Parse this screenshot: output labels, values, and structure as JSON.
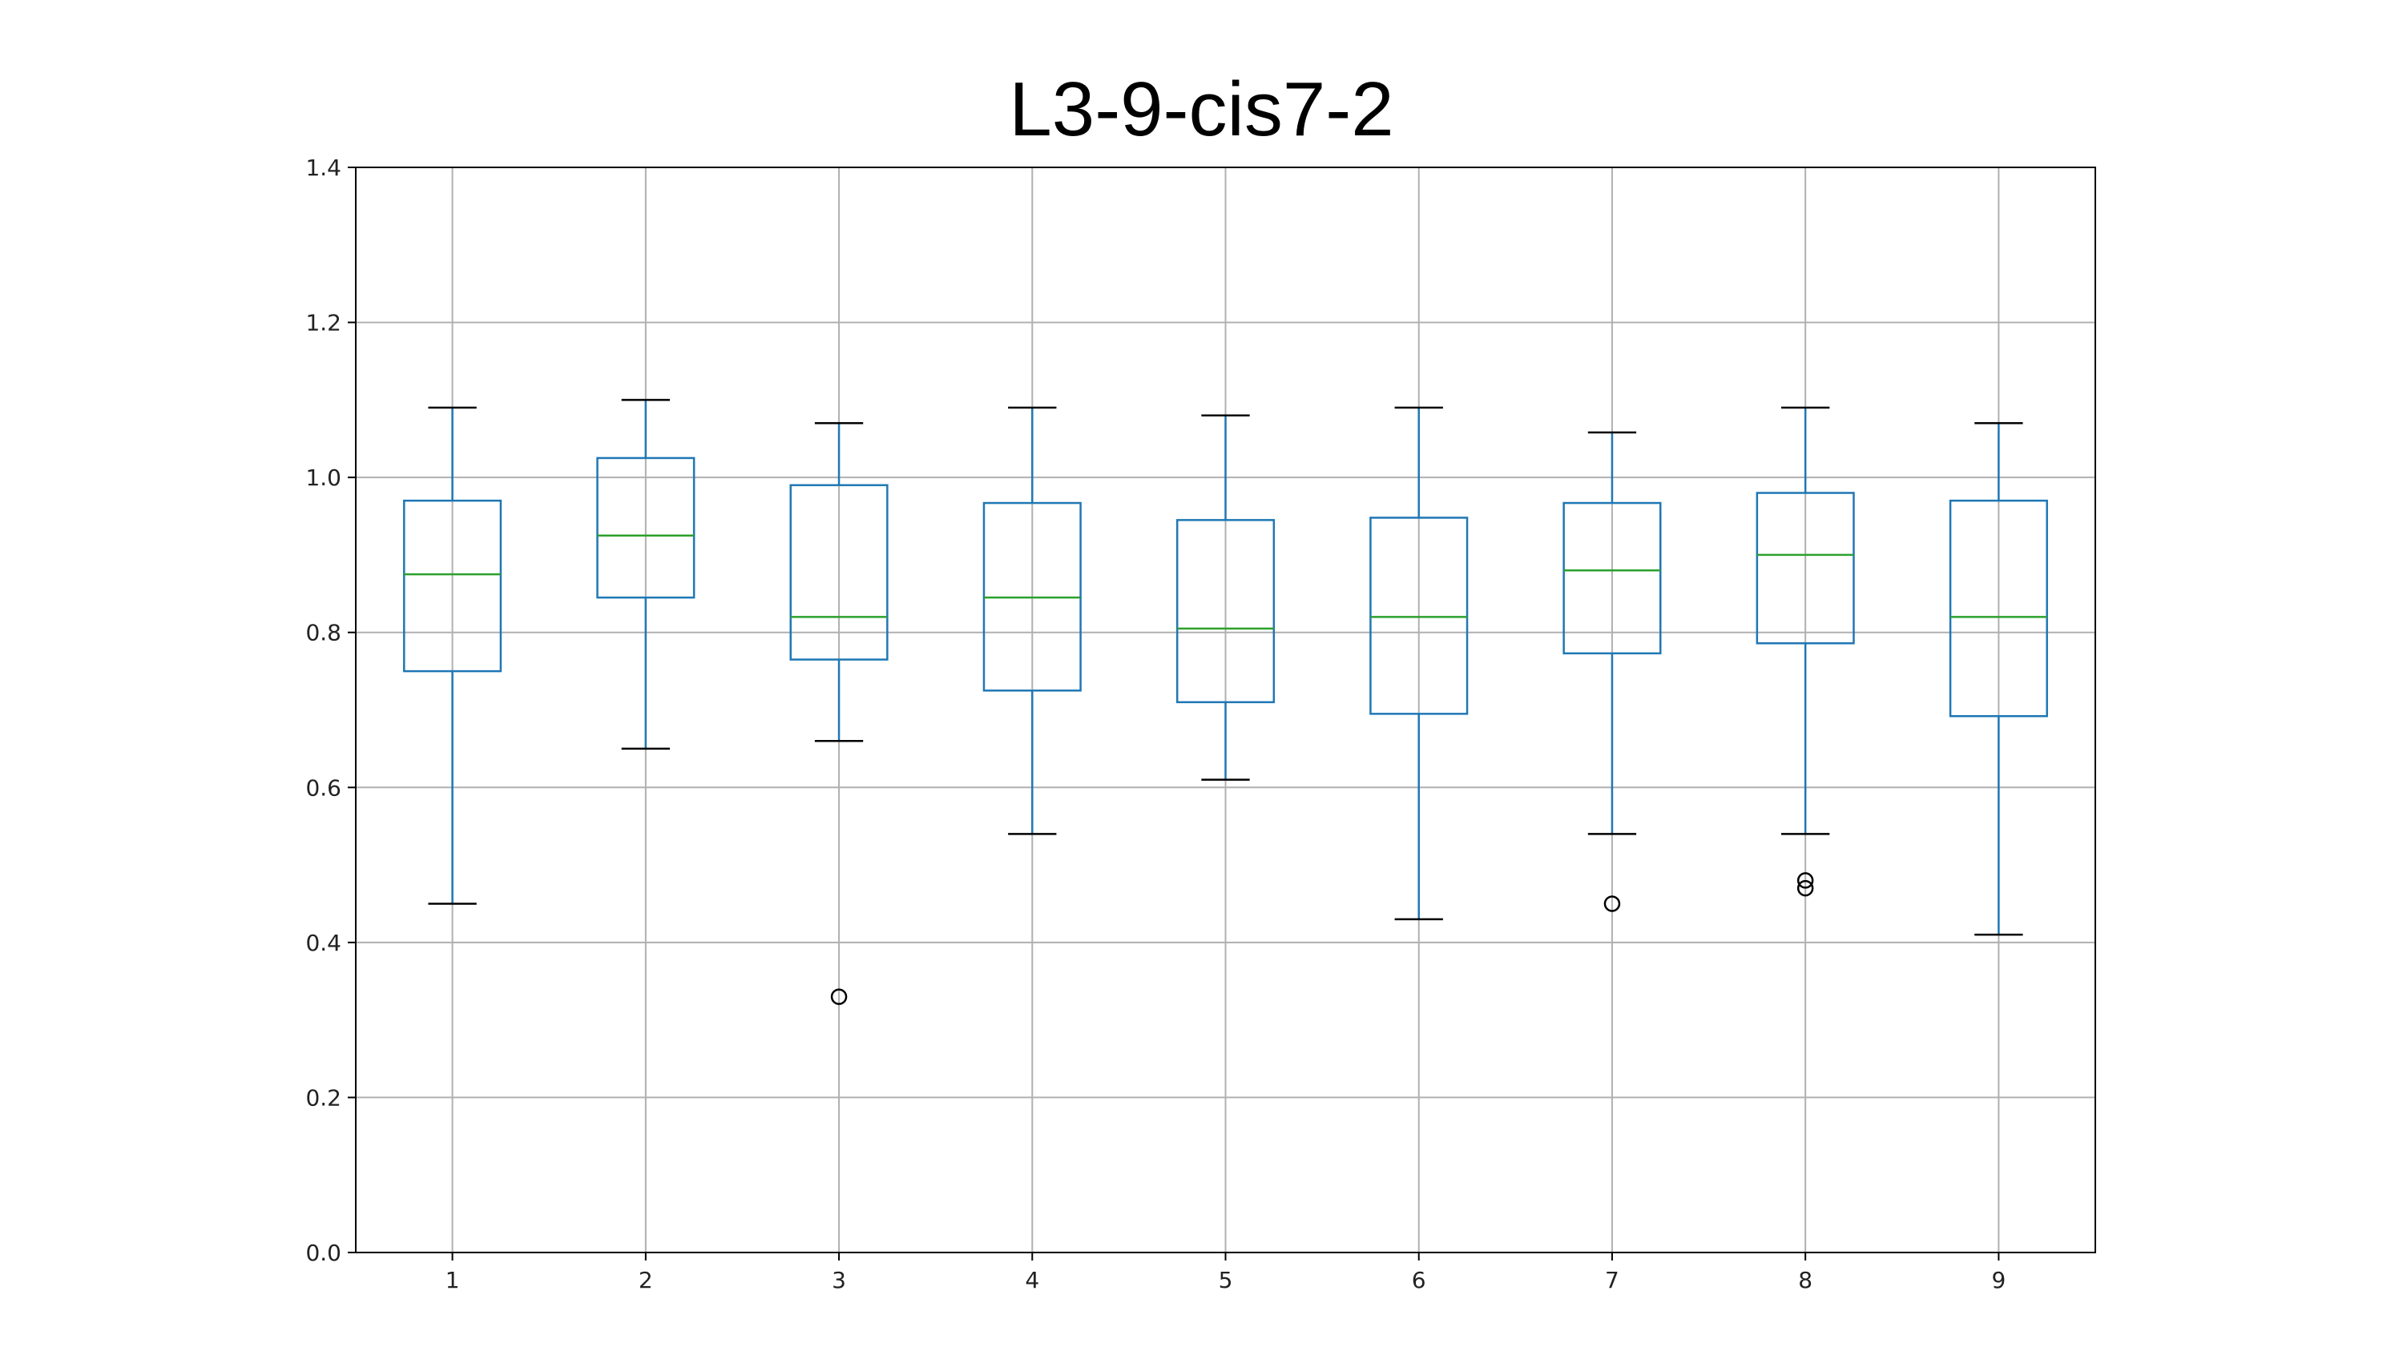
{
  "chart_data": {
    "type": "box",
    "title": "L3-9-cis7-2",
    "xlabel": "",
    "ylabel": "",
    "categories": [
      "1",
      "2",
      "3",
      "4",
      "5",
      "6",
      "7",
      "8",
      "9"
    ],
    "ylim": [
      0.0,
      1.4
    ],
    "yticks": [
      0.0,
      0.2,
      0.4,
      0.6,
      0.8,
      1.0,
      1.2,
      1.4
    ],
    "ytick_labels": [
      "0.0",
      "0.2",
      "0.4",
      "0.6",
      "0.8",
      "1.0",
      "1.2",
      "1.4"
    ],
    "grid": true,
    "boxes": [
      {
        "label": "1",
        "whisker_low": 0.45,
        "q1": 0.75,
        "median": 0.875,
        "q3": 0.97,
        "whisker_high": 1.09,
        "outliers": []
      },
      {
        "label": "2",
        "whisker_low": 0.65,
        "q1": 0.845,
        "median": 0.925,
        "q3": 1.025,
        "whisker_high": 1.1,
        "outliers": []
      },
      {
        "label": "3",
        "whisker_low": 0.66,
        "q1": 0.765,
        "median": 0.82,
        "q3": 0.99,
        "whisker_high": 1.07,
        "outliers": [
          0.33
        ]
      },
      {
        "label": "4",
        "whisker_low": 0.54,
        "q1": 0.725,
        "median": 0.845,
        "q3": 0.967,
        "whisker_high": 1.09,
        "outliers": []
      },
      {
        "label": "5",
        "whisker_low": 0.61,
        "q1": 0.71,
        "median": 0.805,
        "q3": 0.945,
        "whisker_high": 1.08,
        "outliers": []
      },
      {
        "label": "6",
        "whisker_low": 0.43,
        "q1": 0.695,
        "median": 0.82,
        "q3": 0.948,
        "whisker_high": 1.09,
        "outliers": []
      },
      {
        "label": "7",
        "whisker_low": 0.54,
        "q1": 0.773,
        "median": 0.88,
        "q3": 0.967,
        "whisker_high": 1.058,
        "outliers": [
          0.45
        ]
      },
      {
        "label": "8",
        "whisker_low": 0.54,
        "q1": 0.786,
        "median": 0.9,
        "q3": 0.98,
        "whisker_high": 1.09,
        "outliers": [
          0.48,
          0.47
        ]
      },
      {
        "label": "9",
        "whisker_low": 0.41,
        "q1": 0.692,
        "median": 0.82,
        "q3": 0.97,
        "whisker_high": 1.07,
        "outliers": []
      }
    ],
    "colors": {
      "box": "#1f77b4",
      "median": "#2ca02c",
      "whisker_cap": "#000000",
      "outlier": "#000000",
      "grid": "#b0b0b0",
      "axis": "#000000"
    }
  }
}
